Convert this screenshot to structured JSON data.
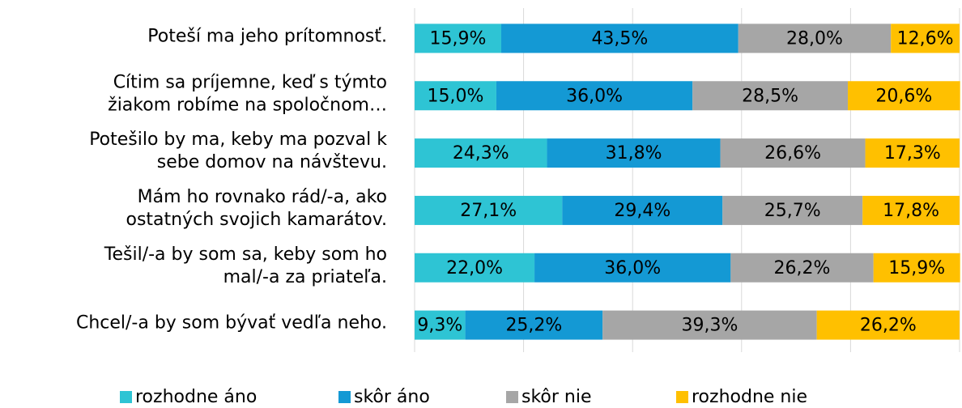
{
  "chart_data": {
    "type": "stacked_barh",
    "categories": [
      "Poteší ma jeho prítomnosť.",
      "Cítim sa príjemne, keď s týmto\nžiakom robíme na spoločnom…",
      "Potešilo by ma, keby ma pozval k\nsebe domov na návštevu.",
      "Mám ho rovnako rád/-a,  ako\nostatných svojich kamarátov.",
      "Tešil/-a by som sa, keby som ho\nmal/-a za priateľa.",
      "Chcel/-a by som bývať vedľa neho."
    ],
    "series": [
      {
        "name": "rozhodne áno",
        "color": "#2ec4d4",
        "values": [
          15.9,
          15.0,
          24.3,
          27.1,
          22.0,
          9.3
        ],
        "value_labels": [
          "15,9%",
          "15,0%",
          "24,3%",
          "27,1%",
          "22,0%",
          "9,3%"
        ]
      },
      {
        "name": "skôr áno",
        "color": "#1499d4",
        "values": [
          43.5,
          36.0,
          31.8,
          29.4,
          36.0,
          25.2
        ],
        "value_labels": [
          "43,5%",
          "36,0%",
          "31,8%",
          "29,4%",
          "36,0%",
          "25,2%"
        ]
      },
      {
        "name": "skôr nie",
        "color": "#a6a6a6",
        "values": [
          28.0,
          28.5,
          26.6,
          25.7,
          26.2,
          39.3
        ],
        "value_labels": [
          "28,0%",
          "28,5%",
          "26,6%",
          "25,7%",
          "26,2%",
          "39,3%"
        ]
      },
      {
        "name": "rozhodne nie",
        "color": "#ffc000",
        "values": [
          12.6,
          20.6,
          17.3,
          17.8,
          15.9,
          26.2
        ],
        "value_labels": [
          "12,6%",
          "20,6%",
          "17,3%",
          "17,8%",
          "15,9%",
          "26,2%"
        ]
      }
    ],
    "xlim": [
      0,
      100
    ],
    "xticks": [
      0,
      20,
      40,
      60,
      80,
      100
    ],
    "grid": true
  }
}
